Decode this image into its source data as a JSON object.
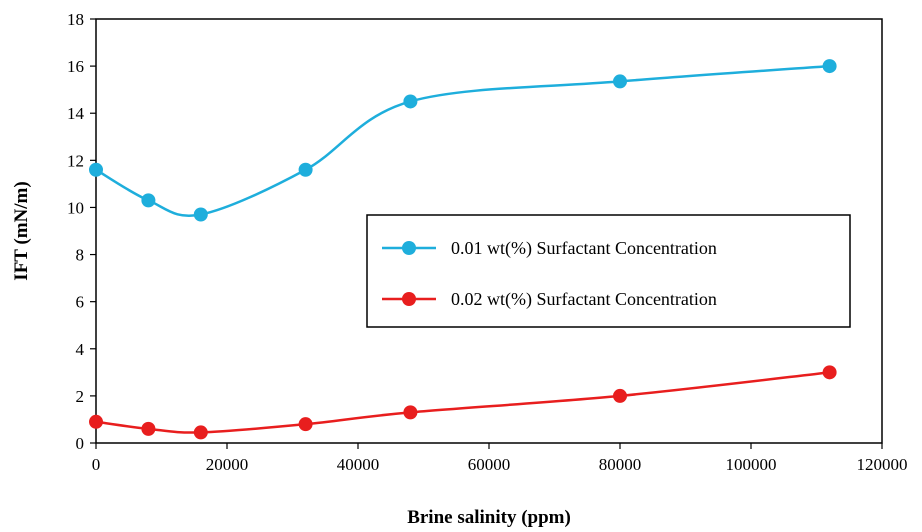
{
  "chart_data": {
    "type": "line",
    "title": "",
    "xlabel": "Brine salinity (ppm)",
    "ylabel": "IFT (mN/m)",
    "xlim": [
      0,
      120000
    ],
    "ylim": [
      0,
      18
    ],
    "x_ticks": [
      0,
      20000,
      40000,
      60000,
      80000,
      100000,
      120000
    ],
    "y_ticks": [
      0,
      2,
      4,
      6,
      8,
      10,
      12,
      14,
      16,
      18
    ],
    "grid": false,
    "legend_position": "center-right",
    "series": [
      {
        "name": "0.01 wt(%) Surfactant Concentration",
        "color": "#1EAEDC",
        "x": [
          0,
          8000,
          16000,
          32000,
          48000,
          80000,
          112000
        ],
        "y": [
          11.6,
          10.3,
          9.7,
          11.6,
          14.5,
          15.35,
          16.0
        ]
      },
      {
        "name": "0.02 wt(%) Surfactant Concentration",
        "color": "#E81E1E",
        "x": [
          0,
          8000,
          16000,
          32000,
          48000,
          80000,
          112000
        ],
        "y": [
          0.9,
          0.6,
          0.45,
          0.8,
          1.3,
          2.0,
          3.0
        ]
      }
    ]
  }
}
